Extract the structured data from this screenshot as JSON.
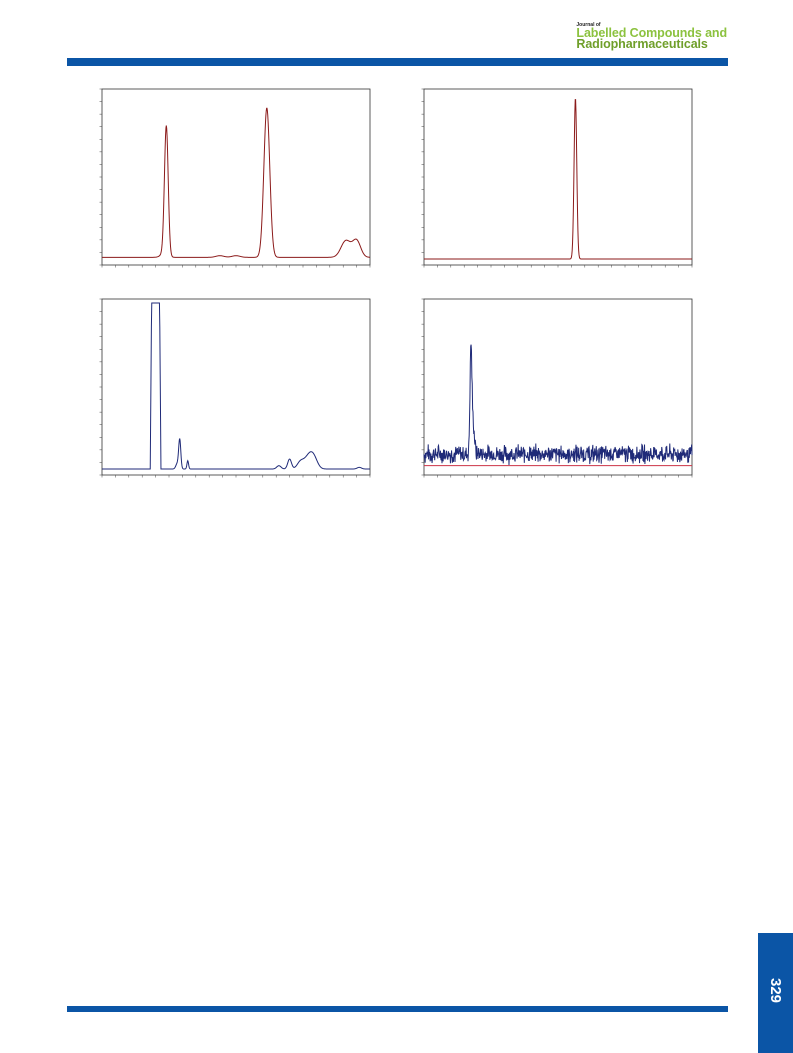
{
  "header": {
    "journal_of": "Journal of",
    "journal_line1": "Labelled Compounds and",
    "journal_line2": "Radiopharmaceuticals"
  },
  "footer": {
    "page_number": "329"
  },
  "colors": {
    "brand_blue": "#0b55a6",
    "brand_green": "#8cc23f",
    "uv_trace": "#8b1a1a",
    "radio_trace": "#1f2a78",
    "baseline_red": "#cc3344"
  },
  "chart_data": [
    {
      "type": "line",
      "title": "",
      "xlabel": "",
      "ylabel": "",
      "xlim": [
        0,
        100
      ],
      "ylim": [
        0,
        100
      ],
      "series": [
        {
          "color": "#8b1a1a",
          "peaks": [
            [
              24,
              78,
              0.7
            ],
            [
              23,
              2,
              1.2
            ],
            [
              44,
              1,
              1.5
            ],
            [
              50,
              1,
              1.5
            ],
            [
              61.5,
              90,
              1.1
            ],
            [
              91,
              10,
              1.8
            ],
            [
              95,
              10,
              1.5
            ]
          ],
          "baseline": 1
        }
      ]
    },
    {
      "type": "line",
      "title": "",
      "xlabel": "",
      "ylabel": "",
      "xlim": [
        0,
        100
      ],
      "ylim": [
        0,
        100
      ],
      "series": [
        {
          "color": "#8b1a1a",
          "peaks": [
            [
              56.5,
              97,
              0.5
            ]
          ],
          "baseline": 0
        }
      ]
    },
    {
      "type": "line",
      "title": "",
      "xlabel": "",
      "ylabel": "",
      "xlim": [
        0,
        100
      ],
      "ylim": [
        0,
        100
      ],
      "series": [
        {
          "color": "#1f2a78",
          "plateau": [
            18.5,
            21.5,
            100
          ],
          "peaks": [
            [
              29,
              18,
              0.4
            ],
            [
              28,
              3,
              0.5
            ],
            [
              32,
              5,
              0.3
            ],
            [
              66,
              2,
              0.8
            ],
            [
              70,
              6,
              0.7
            ],
            [
              74,
              4,
              1.2
            ],
            [
              77,
              7,
              1.6
            ],
            [
              79,
              6,
              1.4
            ],
            [
              96,
              1,
              0.8
            ]
          ],
          "baseline": 0
        }
      ]
    },
    {
      "type": "line",
      "title": "",
      "xlabel": "",
      "ylabel": "",
      "xlim": [
        0,
        100
      ],
      "ylim": [
        0,
        100
      ],
      "series": [
        {
          "color": "#1f2a78",
          "noisy": true,
          "noise_level": 9,
          "noise_amp": 4.5,
          "peaks": [
            [
              17.5,
              62,
              0.35
            ],
            [
              18.3,
              18,
              0.5
            ]
          ]
        },
        {
          "color": "#cc3344",
          "flat": 2
        }
      ]
    }
  ]
}
